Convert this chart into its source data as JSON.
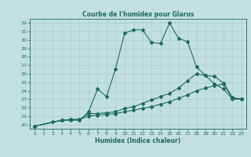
{
  "title": "Courbe de l'humidex pour Glarus",
  "xlabel": "Humidex (Indice chaleur)",
  "bg_color": "#c2e0e0",
  "line_color": "#1e6b60",
  "grid_color": "#a8cece",
  "ylim": [
    19.5,
    32.5
  ],
  "xlim": [
    -0.5,
    23.5
  ],
  "yticks": [
    20,
    21,
    22,
    23,
    24,
    25,
    26,
    27,
    28,
    29,
    30,
    31,
    32
  ],
  "xticks": [
    0,
    1,
    2,
    3,
    4,
    5,
    6,
    7,
    8,
    9,
    10,
    11,
    12,
    13,
    14,
    15,
    16,
    17,
    18,
    19,
    20,
    21,
    22,
    23
  ],
  "line1_x": [
    0,
    2,
    3,
    4,
    5,
    6,
    7,
    8,
    9,
    10,
    11,
    12,
    13,
    14,
    15,
    16,
    17,
    18,
    19,
    20,
    21,
    22,
    23
  ],
  "line1_y": [
    19.8,
    20.3,
    20.5,
    20.5,
    20.5,
    21.5,
    24.2,
    23.3,
    26.6,
    30.8,
    31.2,
    31.2,
    29.7,
    29.6,
    32.0,
    30.2,
    29.8,
    26.8,
    25.8,
    24.8,
    24.2,
    23.0,
    23.0
  ],
  "line2_x": [
    0,
    3,
    4,
    5,
    6,
    7,
    8,
    9,
    10,
    11,
    12,
    13,
    14,
    15,
    16,
    17,
    18,
    19,
    20,
    21,
    22,
    23
  ],
  "line2_y": [
    19.8,
    20.5,
    20.6,
    20.6,
    21.3,
    21.3,
    21.4,
    21.5,
    21.9,
    22.1,
    22.5,
    22.9,
    23.3,
    23.7,
    24.3,
    25.2,
    26.0,
    25.8,
    25.7,
    24.9,
    23.2,
    23.0
  ],
  "line3_x": [
    0,
    3,
    4,
    5,
    6,
    7,
    8,
    9,
    10,
    11,
    12,
    13,
    14,
    15,
    16,
    17,
    18,
    19,
    20,
    21,
    22,
    23
  ],
  "line3_y": [
    19.8,
    20.5,
    20.6,
    20.6,
    21.0,
    21.1,
    21.2,
    21.3,
    21.5,
    21.7,
    21.9,
    22.1,
    22.4,
    22.7,
    23.1,
    23.5,
    24.0,
    24.3,
    24.6,
    24.8,
    23.1,
    23.0
  ]
}
